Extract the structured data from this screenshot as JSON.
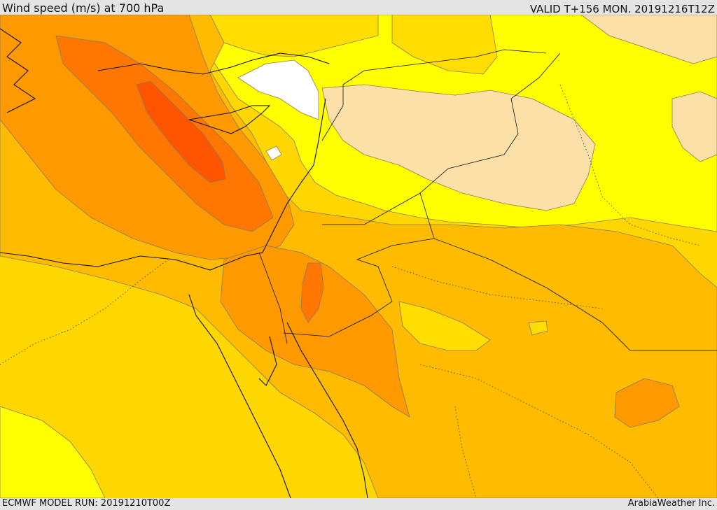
{
  "header": {
    "title": "Wind speed (m/s) at 700 hPa",
    "valid_time": "VALID T+156 MON. 20191216T12Z"
  },
  "footer": {
    "model_run": "ECMWF MODEL RUN: 20191210T00Z",
    "credit": "ArabiaWeather Inc."
  },
  "map": {
    "variable": "wind speed",
    "units": "m/s",
    "pressure_level": "700 hPa",
    "palette": {
      "very_light": "#ffe0a8",
      "light": "#ffff00",
      "medium_light": "#ffdd00",
      "medium": "#ffbb00",
      "medium_high": "#ff9900",
      "high": "#ff7700",
      "very_high": "#ff5500",
      "calm": "#ffffff"
    }
  }
}
